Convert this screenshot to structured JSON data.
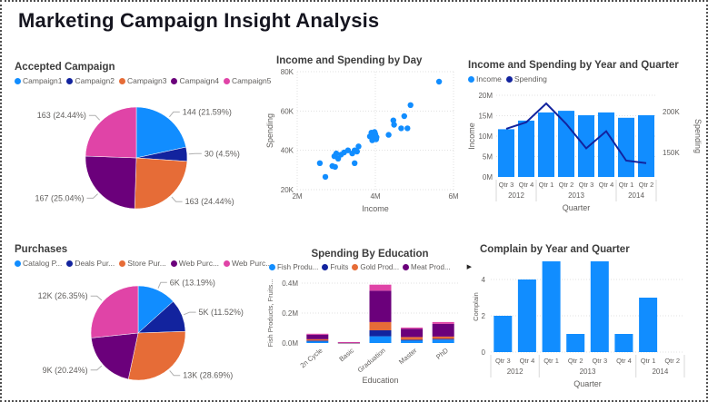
{
  "page": {
    "title": "Marketing Campaign Insight Analysis"
  },
  "colors": {
    "blue": "#118DFF",
    "navy": "#12239E",
    "orange": "#E66C37",
    "purple": "#6B007B",
    "pink": "#E044A7",
    "axis_text": "#605E5C",
    "chart_title": "#3d3d3d",
    "grid": "#E1E1E1"
  },
  "chart_data": [
    {
      "id": "accepted-campaign",
      "type": "pie",
      "title": "Accepted Campaign",
      "legend": [
        "Campaign1",
        "Campaign2",
        "Campaign3",
        "Campaign4",
        "Campaign5"
      ],
      "legend_colors": [
        "#118DFF",
        "#12239E",
        "#E66C37",
        "#6B007B",
        "#E044A7"
      ],
      "colors": [
        "#118DFF",
        "#12239E",
        "#E66C37",
        "#6B007B",
        "#E044A7"
      ],
      "values": [
        144,
        30,
        163,
        167,
        163
      ],
      "labels": [
        "144 (21.59%)",
        "30 (4.5%)",
        "163 (24.44%)",
        "167 (25.04%)",
        "163 (24.44%)"
      ]
    },
    {
      "id": "income-spending-day",
      "type": "scatter",
      "title": "Income and Spending by Day",
      "xlabel": "Income",
      "ylabel": "Spending",
      "xlim_M": [
        2,
        6
      ],
      "ylim_K": [
        20,
        80
      ],
      "xticks": [
        "2M",
        "4M",
        "6M"
      ],
      "yticks": [
        "20K",
        "40K",
        "60K",
        "80K"
      ],
      "point_color": "#118DFF",
      "points_income_M_spending_K": [
        [
          2.58,
          33.5
        ],
        [
          2.72,
          26.5
        ],
        [
          2.9,
          32.0
        ],
        [
          2.97,
          31.6
        ],
        [
          2.95,
          37.0
        ],
        [
          3.0,
          38.4
        ],
        [
          3.05,
          35.8
        ],
        [
          3.12,
          37.8
        ],
        [
          3.2,
          38.9
        ],
        [
          3.3,
          40.0
        ],
        [
          3.41,
          38.4
        ],
        [
          3.47,
          40.0
        ],
        [
          3.47,
          33.5
        ],
        [
          3.53,
          39.4
        ],
        [
          3.57,
          42.0
        ],
        [
          3.86,
          47.1
        ],
        [
          3.9,
          49.0
        ],
        [
          3.92,
          45.1
        ],
        [
          3.94,
          46.7
        ],
        [
          3.98,
          49.3
        ],
        [
          4.0,
          48.2
        ],
        [
          4.02,
          45.6
        ],
        [
          4.03,
          46.7
        ],
        [
          4.34,
          47.9
        ],
        [
          4.46,
          55.2
        ],
        [
          4.48,
          53.0
        ],
        [
          4.66,
          51.2
        ],
        [
          4.74,
          57.4
        ],
        [
          4.82,
          51.2
        ],
        [
          4.9,
          63.0
        ],
        [
          5.63,
          74.9
        ]
      ]
    },
    {
      "id": "income-spending-quarter",
      "type": "combo",
      "title": "Income and Spending by Year and Quarter",
      "legend": [
        "Income",
        "Spending"
      ],
      "legend_colors": [
        "#118DFF",
        "#12239E"
      ],
      "bar_color": "#118DFF",
      "line_color": "#12239E",
      "categories": [
        "Qtr 3",
        "Qtr 4",
        "Qtr 1",
        "Qtr 2",
        "Qtr 3",
        "Qtr 4",
        "Qtr 1",
        "Qtr 2"
      ],
      "year_groups": [
        {
          "label": "2012",
          "span": 2
        },
        {
          "label": "2013",
          "span": 4
        },
        {
          "label": "2014",
          "span": 2
        }
      ],
      "bar_values_M": [
        11.7,
        13.8,
        15.8,
        16.2,
        15.1,
        15.8,
        14.5,
        15.1
      ],
      "line_values_K": [
        179,
        187,
        210,
        185,
        155,
        176,
        140,
        137
      ],
      "left_axis": {
        "label": "Income",
        "ticks": [
          "0M",
          "5M",
          "10M",
          "15M",
          "20M"
        ],
        "range_M": [
          0,
          20
        ]
      },
      "right_axis": {
        "label": "Spending",
        "ticks": [
          "150K",
          "200K"
        ],
        "tick_values_K": [
          150,
          200
        ],
        "range_K": [
          120,
          220
        ]
      },
      "xlabel": "Quarter"
    },
    {
      "id": "purchases",
      "type": "pie",
      "title": "Purchases",
      "legend": [
        "Catalog P...",
        "Deals Pur...",
        "Store Pur...",
        "Web Purc...",
        "Web Purc..."
      ],
      "legend_colors": [
        "#118DFF",
        "#12239E",
        "#E66C37",
        "#6B007B",
        "#E044A7"
      ],
      "colors": [
        "#118DFF",
        "#12239E",
        "#E66C37",
        "#6B007B",
        "#E044A7"
      ],
      "values": [
        6,
        5,
        13,
        9,
        12
      ],
      "labels": [
        "6K (13.19%)",
        "5K (11.52%)",
        "13K (28.69%)",
        "9K (20.24%)",
        "12K (26.35%)"
      ]
    },
    {
      "id": "spending-education",
      "type": "stacked-bar",
      "title": "Spending By Education",
      "legend": [
        "Fish Produ...",
        "Fruits",
        "Gold Prod...",
        "Meat Prod..."
      ],
      "legend_colors": [
        "#118DFF",
        "#12239E",
        "#E66C37",
        "#6B007B"
      ],
      "legend_more_arrow": "▶",
      "categories": [
        "2n Cycle",
        "Basic",
        "Graduation",
        "Master",
        "PhD"
      ],
      "series": [
        {
          "name": "Fish Produ...",
          "color": "#118DFF",
          "values_M": [
            0.012,
            0.001,
            0.045,
            0.018,
            0.022
          ]
        },
        {
          "name": "Fruits",
          "color": "#12239E",
          "values_M": [
            0.004,
            0.001,
            0.04,
            0.004,
            0.005
          ]
        },
        {
          "name": "Gold Prod...",
          "color": "#E66C37",
          "values_M": [
            0.01,
            0.001,
            0.055,
            0.018,
            0.016
          ]
        },
        {
          "name": "Meat Prod...",
          "color": "#6B007B",
          "values_M": [
            0.03,
            0.002,
            0.21,
            0.055,
            0.085
          ]
        },
        {
          "name": "",
          "color": "#E044A7",
          "values_M": [
            0.006,
            0.001,
            0.04,
            0.008,
            0.012
          ]
        }
      ],
      "xlabel": "Education",
      "ylabel": "Fish Products, Fruits...",
      "yticks": [
        "0.0M",
        "0.2M",
        "0.4M"
      ],
      "ylim_M": [
        0,
        0.4
      ]
    },
    {
      "id": "complain-quarter",
      "type": "bar",
      "title": "Complain by Year and Quarter",
      "bar_color": "#118DFF",
      "categories": [
        "Qtr 3",
        "Qtr 4",
        "Qtr 1",
        "Qtr 2",
        "Qtr 3",
        "Qtr 4",
        "Qtr 1",
        "Qtr 2"
      ],
      "year_groups": [
        {
          "label": "2012",
          "span": 2
        },
        {
          "label": "2013",
          "span": 4
        },
        {
          "label": "2014",
          "span": 2
        }
      ],
      "values": [
        2,
        4,
        5,
        1,
        5,
        1,
        3,
        0
      ],
      "ylabel": "Complain",
      "xlabel": "Quarter",
      "yticks": [
        "0",
        "2",
        "4"
      ],
      "ytick_values": [
        0,
        2,
        4
      ],
      "ylim": [
        0,
        5.3
      ]
    }
  ]
}
